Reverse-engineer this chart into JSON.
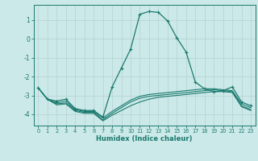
{
  "xlabel": "Humidex (Indice chaleur)",
  "xlim": [
    -0.5,
    23.5
  ],
  "ylim": [
    -4.6,
    1.8
  ],
  "bg_color": "#cce9e9",
  "line_color": "#1a7a6e",
  "grid_color": "#b8d4d4",
  "x_ticks": [
    0,
    1,
    2,
    3,
    4,
    5,
    6,
    7,
    8,
    9,
    10,
    11,
    12,
    13,
    14,
    15,
    16,
    17,
    18,
    19,
    20,
    21,
    22,
    23
  ],
  "y_ticks": [
    -4,
    -3,
    -2,
    -1,
    0,
    1
  ],
  "line1_x": [
    0,
    1,
    2,
    3,
    4,
    5,
    6,
    7,
    8,
    9,
    10,
    11,
    12,
    13,
    14,
    15,
    16,
    17,
    18,
    19,
    20,
    21,
    22,
    23
  ],
  "line1_y": [
    -2.6,
    -3.2,
    -3.3,
    -3.2,
    -3.7,
    -3.8,
    -3.8,
    -4.15,
    -2.55,
    -1.55,
    -0.55,
    1.3,
    1.45,
    1.4,
    0.95,
    0.05,
    -0.7,
    -2.3,
    -2.65,
    -2.8,
    -2.75,
    -2.55,
    -3.35,
    -3.55
  ],
  "line2_x": [
    0,
    1,
    2,
    3,
    4,
    5,
    6,
    7,
    8,
    9,
    10,
    11,
    12,
    13,
    14,
    15,
    16,
    17,
    18,
    19,
    20,
    21,
    22,
    23
  ],
  "line2_y": [
    -2.6,
    -3.2,
    -3.4,
    -3.3,
    -3.75,
    -3.85,
    -3.85,
    -4.2,
    -3.85,
    -3.55,
    -3.25,
    -3.05,
    -2.95,
    -2.9,
    -2.85,
    -2.8,
    -2.75,
    -2.7,
    -2.65,
    -2.65,
    -2.7,
    -2.75,
    -3.45,
    -3.65
  ],
  "line3_x": [
    0,
    1,
    2,
    3,
    4,
    5,
    6,
    7,
    8,
    9,
    10,
    11,
    12,
    13,
    14,
    15,
    16,
    17,
    18,
    19,
    20,
    21,
    22,
    23
  ],
  "line3_y": [
    -2.6,
    -3.2,
    -3.45,
    -3.4,
    -3.8,
    -3.9,
    -3.9,
    -4.3,
    -3.95,
    -3.65,
    -3.35,
    -3.15,
    -3.05,
    -3.0,
    -2.95,
    -2.9,
    -2.85,
    -2.8,
    -2.75,
    -2.7,
    -2.75,
    -2.8,
    -3.55,
    -3.75
  ],
  "line4_x": [
    0,
    1,
    2,
    3,
    4,
    5,
    6,
    7,
    8,
    9,
    10,
    11,
    12,
    13,
    14,
    15,
    16,
    17,
    18,
    19,
    20,
    21,
    22,
    23
  ],
  "line4_y": [
    -2.6,
    -3.2,
    -3.5,
    -3.45,
    -3.85,
    -3.95,
    -3.95,
    -4.35,
    -4.05,
    -3.8,
    -3.55,
    -3.35,
    -3.2,
    -3.1,
    -3.05,
    -3.0,
    -2.95,
    -2.9,
    -2.85,
    -2.8,
    -2.8,
    -2.85,
    -3.6,
    -3.8
  ]
}
